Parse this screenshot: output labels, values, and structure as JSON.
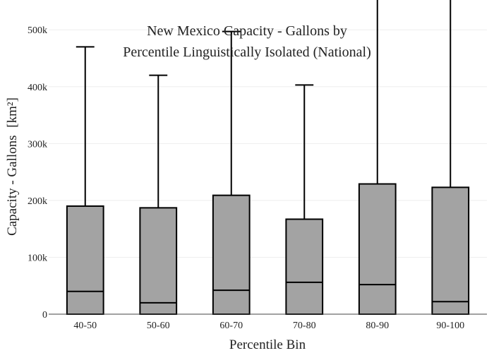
{
  "chart_data": {
    "type": "box",
    "title_lines": [
      "New Mexico Capacity - Gallons by",
      "Percentile Linguistically Isolated (National)"
    ],
    "xlabel": "Percentile Bin",
    "ylabel": "Capacity - Gallons",
    "ylabel_unit": "[km²]",
    "ylim": [
      0,
      540000
    ],
    "yticks": [
      0,
      100000,
      200000,
      300000,
      400000,
      500000
    ],
    "ytick_labels": [
      "0",
      "100k",
      "200k",
      "300k",
      "400k",
      "500k"
    ],
    "categories": [
      "40-50",
      "50-60",
      "60-70",
      "70-80",
      "80-90",
      "90-100"
    ],
    "boxes": [
      {
        "category": "40-50",
        "min": 0,
        "q1": 0,
        "median": 40000,
        "q3": 190000,
        "max": 470000
      },
      {
        "category": "50-60",
        "min": 0,
        "q1": 0,
        "median": 20000,
        "q3": 187000,
        "max": 420000
      },
      {
        "category": "60-70",
        "min": 0,
        "q1": 0,
        "median": 42000,
        "q3": 209000,
        "max": 497000
      },
      {
        "category": "70-80",
        "min": 0,
        "q1": 0,
        "median": 56000,
        "q3": 167000,
        "max": 403000
      },
      {
        "category": "80-90",
        "min": 0,
        "q1": 0,
        "median": 52000,
        "q3": 229000,
        "max": 554000
      },
      {
        "category": "90-100",
        "min": 0,
        "q1": 0,
        "median": 22000,
        "q3": 223000,
        "max": 557000
      }
    ],
    "box_fill": "#a3a3a3",
    "box_stroke": "#000000",
    "grid": true,
    "legend": "none"
  }
}
